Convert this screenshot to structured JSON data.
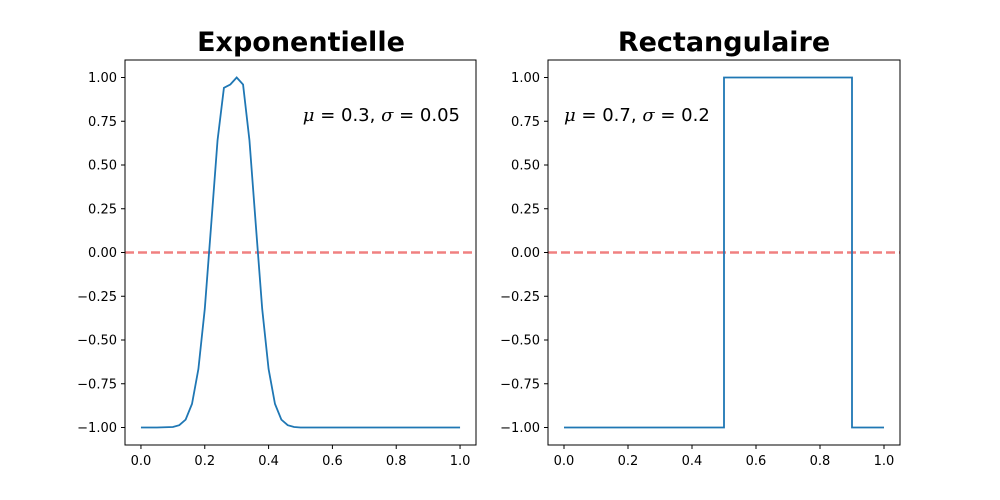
{
  "chart_data": [
    {
      "type": "line",
      "title": "Exponentielle",
      "annotation": {
        "mu_symbol": "μ",
        "sigma_symbol": "σ",
        "mu_value": "0.3",
        "sigma_value": "0.05",
        "position": "top-right"
      },
      "xlim": [
        -0.05,
        1.05
      ],
      "ylim": [
        -1.1,
        1.1
      ],
      "x_ticks": [
        "0.0",
        "0.2",
        "0.4",
        "0.6",
        "0.8",
        "1.0"
      ],
      "y_ticks": [
        "−1.00",
        "−0.75",
        "−0.50",
        "−0.25",
        "0.00",
        "0.25",
        "0.50",
        "0.75",
        "1.00"
      ],
      "grid": false,
      "series_color": "#1f77b4",
      "reference_line": {
        "y": 0,
        "color": "#f08080",
        "style": "dashed"
      },
      "x": [
        0,
        0.05,
        0.1,
        0.12,
        0.14,
        0.16,
        0.18,
        0.2,
        0.22,
        0.24,
        0.26,
        0.28,
        0.3,
        0.32,
        0.34,
        0.36,
        0.38,
        0.4,
        0.42,
        0.44,
        0.46,
        0.48,
        0.5,
        0.55,
        0.6,
        0.7,
        0.8,
        0.9,
        1.0
      ],
      "y": [
        -1.0,
        -1.0,
        -0.997,
        -0.987,
        -0.955,
        -0.865,
        -0.666,
        -0.323,
        0.156,
        0.641,
        0.941,
        0.96,
        1.0,
        0.96,
        0.641,
        0.156,
        -0.323,
        -0.666,
        -0.865,
        -0.955,
        -0.987,
        -0.997,
        -1.0,
        -1.0,
        -1.0,
        -1.0,
        -1.0,
        -1.0,
        -1.0
      ]
    },
    {
      "type": "line",
      "title": "Rectangulaire",
      "annotation": {
        "mu_symbol": "μ",
        "sigma_symbol": "σ",
        "mu_value": "0.7",
        "sigma_value": "0.2",
        "position": "top-left"
      },
      "xlim": [
        -0.05,
        1.05
      ],
      "ylim": [
        -1.1,
        1.1
      ],
      "x_ticks": [
        "0.0",
        "0.2",
        "0.4",
        "0.6",
        "0.8",
        "1.0"
      ],
      "y_ticks": [
        "−1.00",
        "−0.75",
        "−0.50",
        "−0.25",
        "0.00",
        "0.25",
        "0.50",
        "0.75",
        "1.00"
      ],
      "grid": false,
      "series_color": "#1f77b4",
      "reference_line": {
        "y": 0,
        "color": "#f08080",
        "style": "dashed"
      },
      "x": [
        0,
        0.5,
        0.5,
        0.9,
        0.9,
        1.0
      ],
      "y": [
        -1,
        -1,
        1,
        1,
        -1,
        -1
      ]
    }
  ]
}
